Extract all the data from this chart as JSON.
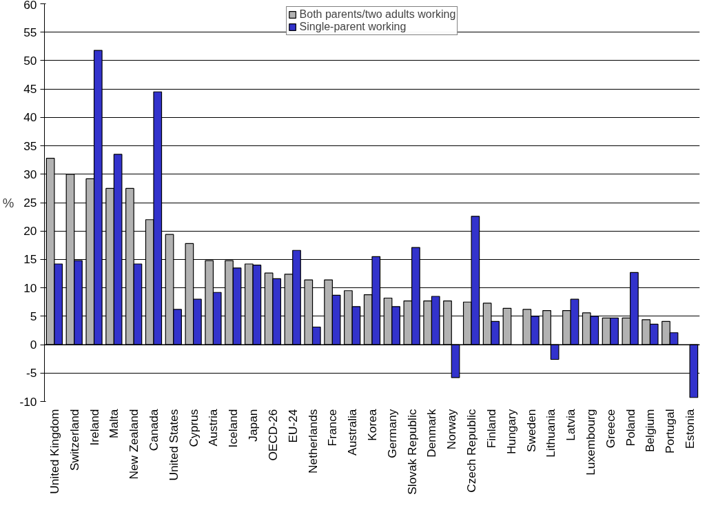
{
  "chart_data": {
    "type": "bar",
    "ylabel": "%",
    "categories": [
      "United Kingdom",
      "Switzerland",
      "Ireland",
      "Malta",
      "New Zealand",
      "Canada",
      "United States",
      "Cyprus",
      "Austria",
      "Iceland",
      "Japan",
      "OECD-26",
      "EU-24",
      "Netherlands",
      "France",
      "Australia",
      "Korea",
      "Germany",
      "Slovak Republic",
      "Denmark",
      "Norway",
      "Czech Republic",
      "Finland",
      "Hungary",
      "Sweden",
      "Lithuania",
      "Latvia",
      "Luxembourg",
      "Greece",
      "Poland",
      "Belgium",
      "Portugal",
      "Estonia"
    ],
    "series": [
      {
        "name": "Both parents/two adults working",
        "color": "#b2b2b2",
        "values": [
          32.8,
          30,
          29.2,
          27.5,
          27.5,
          22,
          19.4,
          17.8,
          14.8,
          14.8,
          14.2,
          12.6,
          12.4,
          11.4,
          11.4,
          9.5,
          8.8,
          8.2,
          7.7,
          7.7,
          7.7,
          7.5,
          7.3,
          6.4,
          6.2,
          6,
          6,
          5.6,
          4.7,
          4.7,
          4.4,
          4.1,
          null
        ]
      },
      {
        "name": "Single-parent working",
        "color": "#3333cc",
        "values": [
          14.2,
          14.8,
          51.8,
          33.5,
          14.2,
          44.5,
          6.2,
          8,
          9.2,
          13.5,
          14,
          11.6,
          16.6,
          3.1,
          8.7,
          6.7,
          15.5,
          6.7,
          17.1,
          8.5,
          -5.8,
          22.6,
          4.1,
          null,
          5,
          -2.6,
          8,
          5,
          4.7,
          12.7,
          3.6,
          2.1,
          -9.3
        ]
      }
    ],
    "ylim": [
      -10,
      60
    ],
    "yticks": [
      -10,
      -5,
      0,
      5,
      10,
      15,
      20,
      25,
      30,
      35,
      40,
      45,
      50,
      55,
      60
    ],
    "grid": "y",
    "legend": "top"
  }
}
